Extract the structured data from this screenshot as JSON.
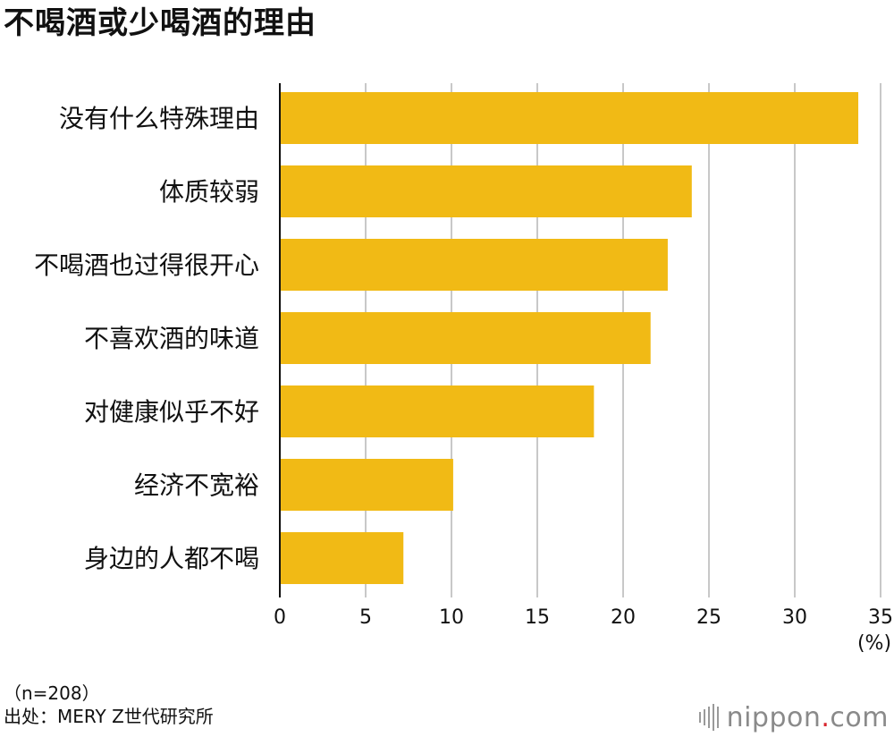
{
  "chart_data": {
    "type": "bar",
    "orientation": "horizontal",
    "title": "不喝酒或少喝酒的理由",
    "categories": [
      "没有什么特殊理由",
      "体质较弱",
      "不喝酒也过得很开心",
      "不喜欢酒的味道",
      "对健康似乎不好",
      "经济不宽裕",
      "身边的人都不喝"
    ],
    "values": [
      33.7,
      24.0,
      22.6,
      21.6,
      18.3,
      10.1,
      7.2
    ],
    "xlim": [
      0,
      35
    ],
    "xticks": [
      "0",
      "5",
      "10",
      "15",
      "20",
      "25",
      "30",
      "35"
    ],
    "xunit": "(%)",
    "bar_color": "#F1BA15",
    "grid": true
  },
  "notes": {
    "sample": "（n=208）",
    "source": "出处：MERY Z世代研究所"
  },
  "logo": {
    "name": "nippon",
    "dot": ".",
    "suffix": "com"
  }
}
